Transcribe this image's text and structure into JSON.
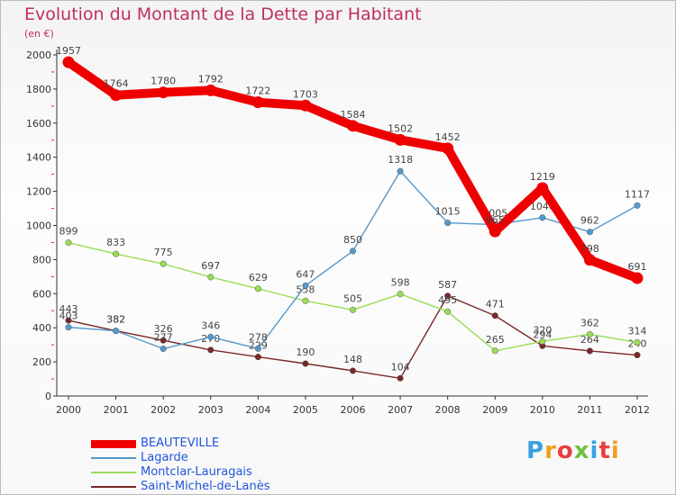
{
  "header": {
    "title": "Evolution du Montant de la Dette par Habitant",
    "unit": "(en €)"
  },
  "brand": {
    "text": "Proxiti",
    "letter_colors": [
      "#3aa0e0",
      "#f0a020",
      "#e84040",
      "#70c040",
      "#3aa0e0",
      "#e84040",
      "#f0a020"
    ]
  },
  "chart_data": {
    "type": "line",
    "title": "Evolution du Montant de la Dette par Habitant",
    "ylabel": "(en €)",
    "xlabel": "",
    "x": [
      2000,
      2001,
      2002,
      2003,
      2004,
      2005,
      2006,
      2007,
      2008,
      2009,
      2010,
      2011,
      2012
    ],
    "ylim": [
      0,
      2000
    ],
    "yticks": [
      0,
      200,
      400,
      600,
      800,
      1000,
      1200,
      1400,
      1600,
      1800,
      2000
    ],
    "grid": false,
    "legend_position": "bottom-left",
    "series": [
      {
        "name": "BEAUTEVILLE",
        "color": "#ee0000",
        "values": [
          1957,
          1764,
          1780,
          1792,
          1722,
          1703,
          1584,
          1502,
          1452,
          965,
          1219,
          798,
          691
        ],
        "labels": [
          "1957",
          "1764",
          "1780",
          "1792",
          "1722",
          "1703",
          "1584",
          "1502",
          "1452",
          "965",
          "1219",
          "798",
          "691"
        ]
      },
      {
        "name": "Lagarde",
        "color": "#5599cc",
        "values": [
          403,
          382,
          277,
          346,
          278,
          647,
          850,
          1318,
          1015,
          1005,
          1046,
          962,
          1117
        ],
        "labels": [
          "403",
          "382",
          "277",
          "346",
          "278",
          "647",
          "850",
          "1318",
          "1015",
          "1005",
          "1046",
          "962",
          "1117"
        ]
      },
      {
        "name": "Montclar-Lauragais",
        "color": "#99dd55",
        "values": [
          899,
          833,
          775,
          697,
          629,
          558,
          505,
          598,
          495,
          265,
          320,
          362,
          314
        ],
        "labels": [
          "899",
          "833",
          "775",
          "697",
          "629",
          "558",
          "505",
          "598",
          "495",
          "265",
          "320",
          "362",
          "314"
        ]
      },
      {
        "name": "Saint-Michel-de-Lanès",
        "color": "#7a2828",
        "values": [
          443,
          382,
          326,
          270,
          229,
          190,
          148,
          104,
          587,
          471,
          294,
          264,
          240
        ],
        "labels": [
          "443",
          "382",
          "326",
          "270",
          "229",
          "190",
          "148",
          "104",
          "587",
          "471",
          "294",
          "264",
          "240"
        ]
      }
    ]
  }
}
